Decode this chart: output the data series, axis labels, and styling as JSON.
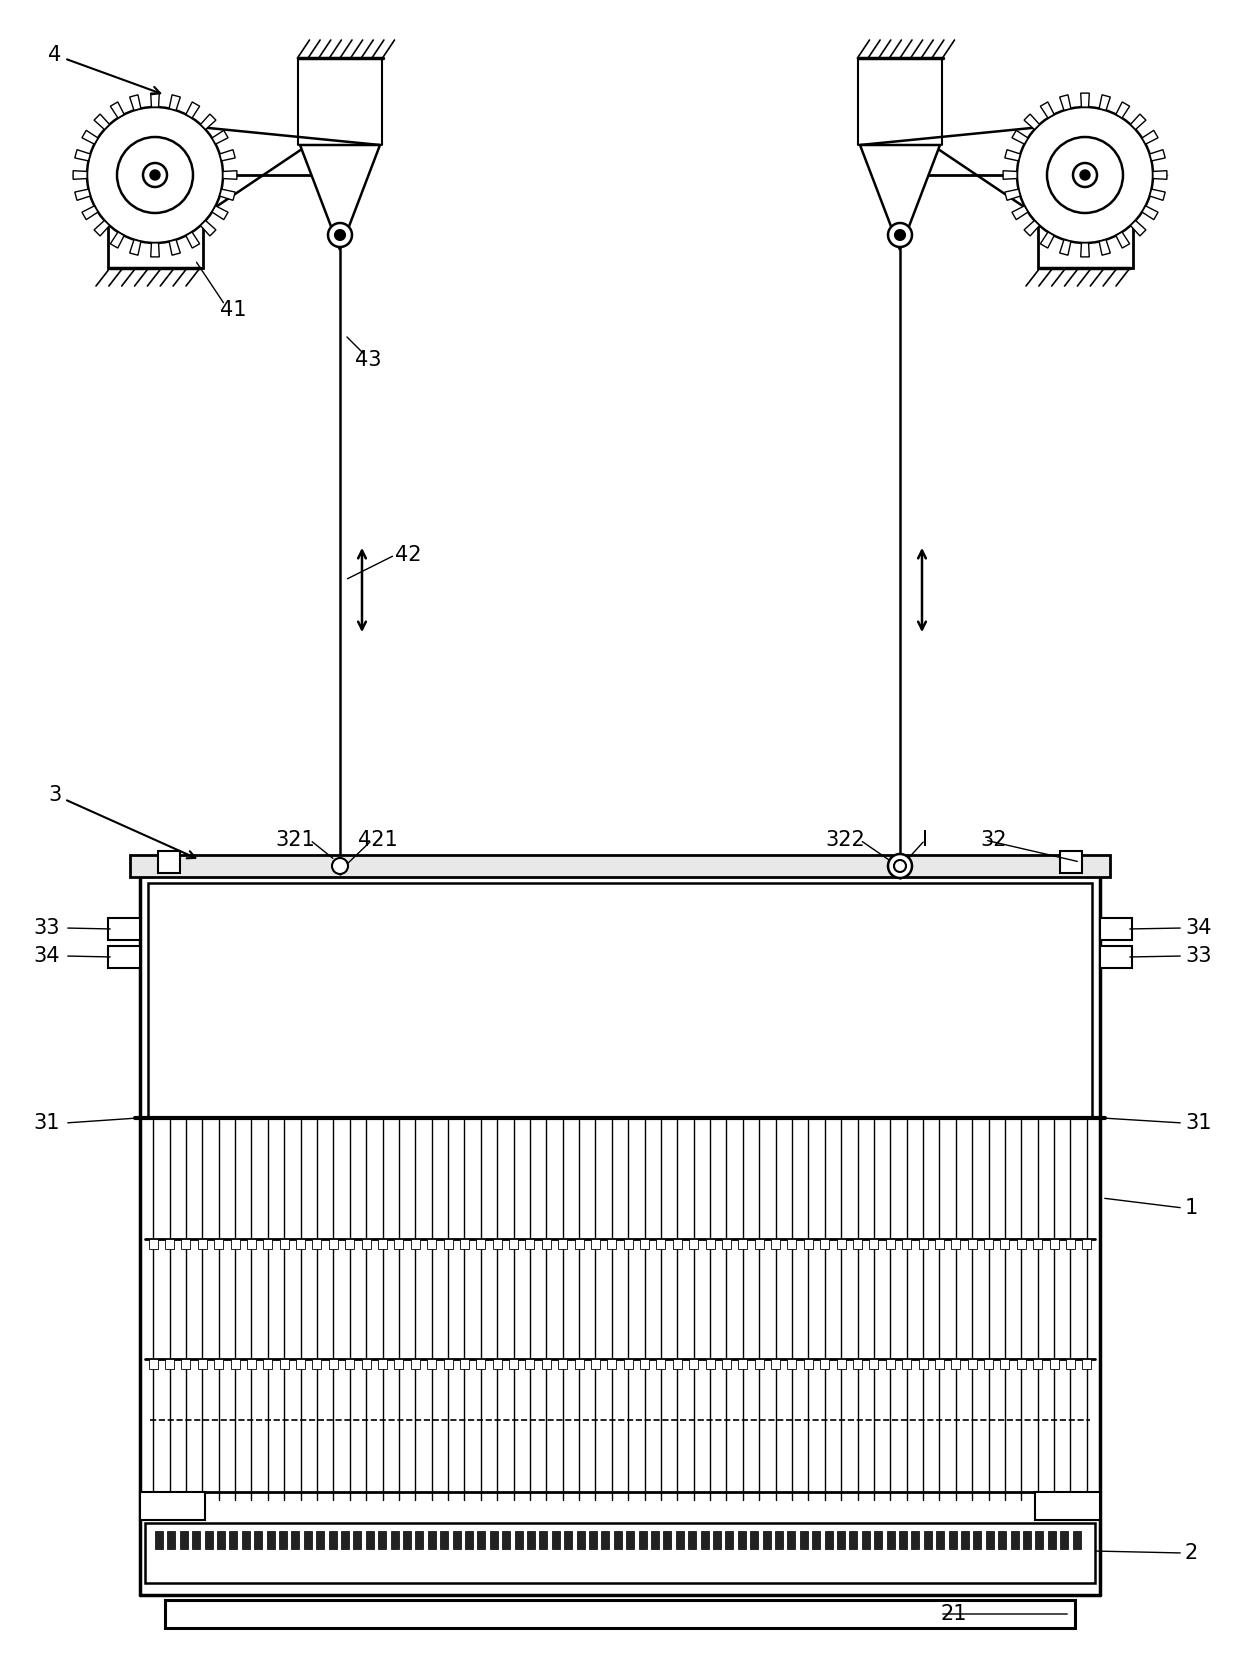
{
  "bg_color": "#ffffff",
  "line_color": "#000000",
  "fig_width": 12.4,
  "fig_height": 16.61,
  "dpi": 100
}
